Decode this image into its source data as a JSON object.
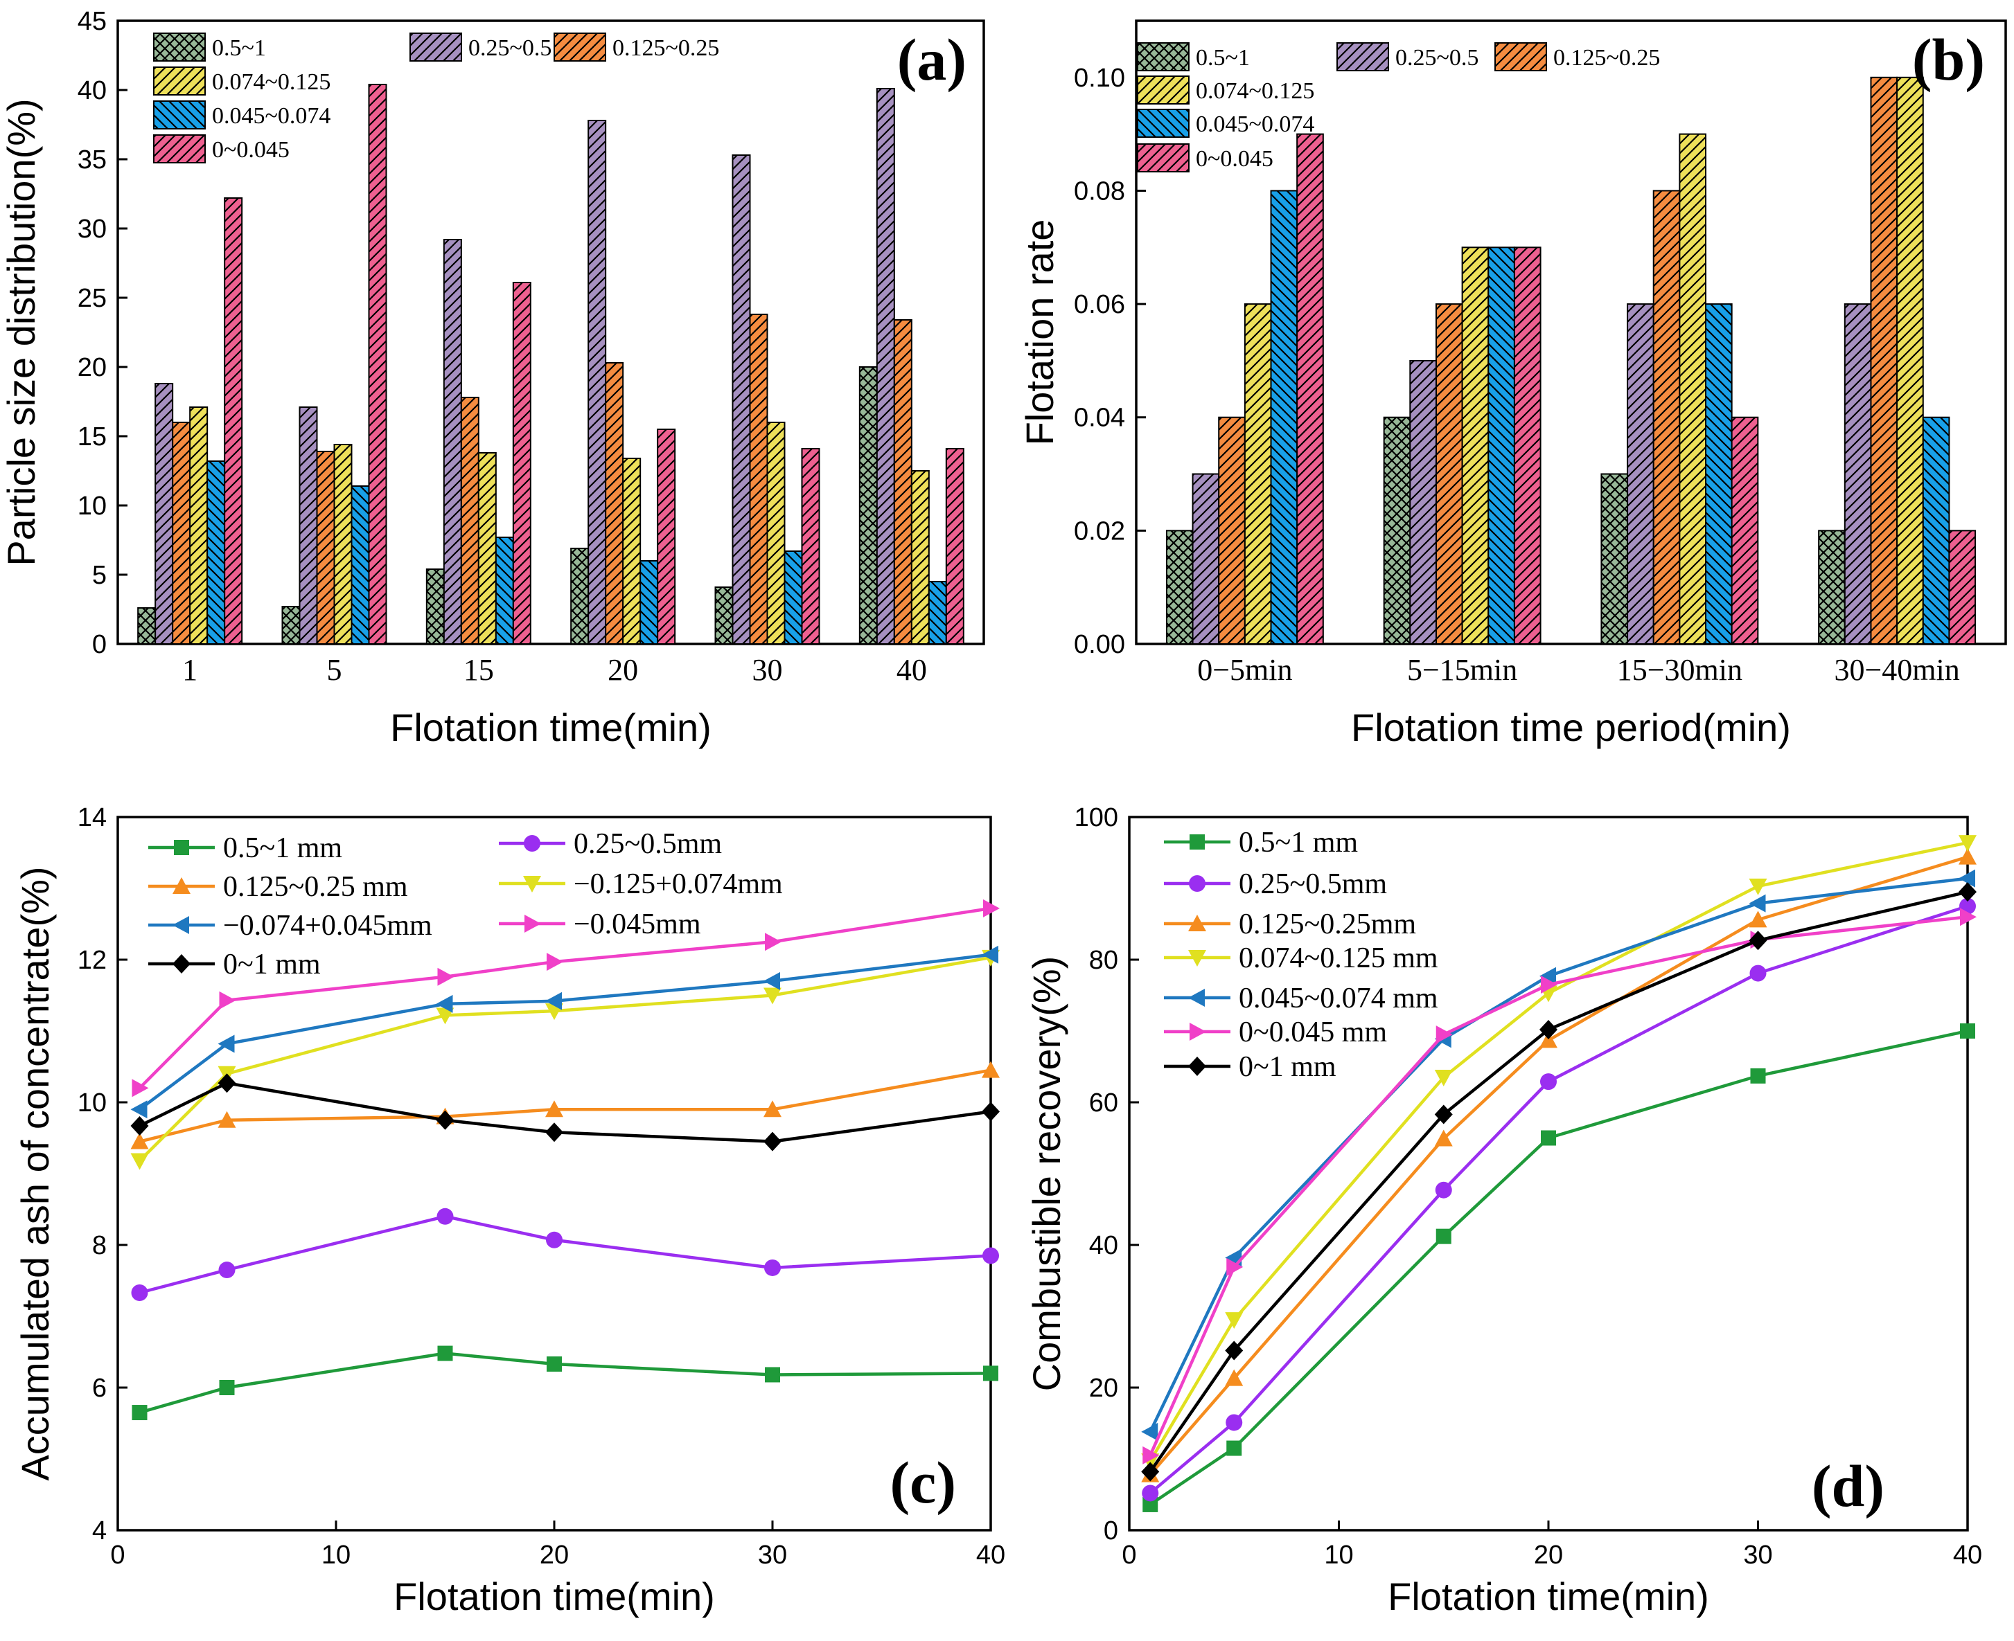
{
  "figure": {
    "bar_series": [
      {
        "name": "0.5~1",
        "color": "#98B898",
        "pattern": "cross"
      },
      {
        "name": "0.25~0.5",
        "color": "#A690C0",
        "pattern": "diagR"
      },
      {
        "name": "0.125~0.25",
        "color": "#F58C40",
        "pattern": "diagR"
      },
      {
        "name": "0.074~0.125",
        "color": "#EEE05A",
        "pattern": "diagR"
      },
      {
        "name": "0.045~0.074",
        "color": "#18A0E8",
        "pattern": "diagL"
      },
      {
        "name": "0~0.045",
        "color": "#EE6090",
        "pattern": "diagR"
      }
    ],
    "line_colors": [
      "#1F9A3A",
      "#9A2EF0",
      "#F58C1E",
      "#E0E020",
      "#1F78C0",
      "#F040C8",
      "#000000"
    ]
  },
  "chart_data": [
    {
      "panel": "(a)",
      "type": "bar",
      "title": "",
      "xlabel": "Flotation time(min)",
      "ylabel": "Particle size distribution(%)",
      "ylim": [
        0,
        45
      ],
      "yticks": [
        "0",
        "5",
        "10",
        "15",
        "20",
        "25",
        "30",
        "35",
        "40",
        "45"
      ],
      "categories": [
        "1",
        "5",
        "15",
        "20",
        "30",
        "40"
      ],
      "series": [
        {
          "name": "0.5~1",
          "values": [
            2.6,
            2.7,
            5.4,
            6.9,
            4.1,
            20.0
          ]
        },
        {
          "name": "0.25~0.5",
          "values": [
            18.8,
            17.1,
            29.2,
            37.8,
            35.3,
            40.1
          ]
        },
        {
          "name": "0.125~0.25",
          "values": [
            16.0,
            13.9,
            17.8,
            20.3,
            23.8,
            23.4
          ]
        },
        {
          "name": "0.074~0.125",
          "values": [
            17.1,
            14.4,
            13.8,
            13.4,
            16.0,
            12.5
          ]
        },
        {
          "name": "0.045~0.074",
          "values": [
            13.2,
            11.4,
            7.7,
            6.0,
            6.7,
            4.5
          ]
        },
        {
          "name": "0~0.045",
          "values": [
            32.2,
            40.4,
            26.1,
            15.5,
            14.1,
            14.1
          ]
        }
      ],
      "legend": "top-left"
    },
    {
      "panel": "(b)",
      "type": "bar",
      "title": "",
      "xlabel": "Flotation time period(min)",
      "ylabel": "Flotation rate",
      "ylim": [
        0,
        0.11
      ],
      "yticks": [
        "0.00",
        "0.02",
        "0.04",
        "0.06",
        "0.08",
        "0.10"
      ],
      "categories": [
        "0−5min",
        "5−15min",
        "15−30min",
        "30−40min"
      ],
      "series": [
        {
          "name": "0.5~1",
          "values": [
            0.02,
            0.04,
            0.03,
            0.02
          ]
        },
        {
          "name": "0.25~0.5",
          "values": [
            0.03,
            0.05,
            0.06,
            0.06
          ]
        },
        {
          "name": "0.125~0.25",
          "values": [
            0.04,
            0.06,
            0.08,
            0.1
          ]
        },
        {
          "name": "0.074~0.125",
          "values": [
            0.06,
            0.07,
            0.09,
            0.1
          ]
        },
        {
          "name": "0.045~0.074",
          "values": [
            0.08,
            0.07,
            0.06,
            0.04
          ]
        },
        {
          "name": "0~0.045",
          "values": [
            0.09,
            0.07,
            0.04,
            0.02
          ]
        }
      ],
      "legend": "top-left"
    },
    {
      "panel": "(c)",
      "type": "line",
      "title": "",
      "xlabel": "Flotation time(min)",
      "ylabel": "Accumulated ash of concentrate(%)",
      "xlim": [
        0,
        40
      ],
      "ylim": [
        4,
        14
      ],
      "xticks": [
        "0",
        "10",
        "20",
        "30",
        "40"
      ],
      "yticks": [
        "4",
        "6",
        "8",
        "10",
        "12",
        "14"
      ],
      "x": [
        1,
        5,
        15,
        20,
        30,
        40
      ],
      "series": [
        {
          "name": "0.5~1 mm",
          "marker": "square",
          "values": [
            5.65,
            6.0,
            6.48,
            6.33,
            6.18,
            6.2
          ]
        },
        {
          "name": "0.25~0.5mm",
          "marker": "circle",
          "values": [
            7.33,
            7.65,
            8.4,
            8.07,
            7.68,
            7.85
          ]
        },
        {
          "name": "0.125~0.25 mm",
          "marker": "triangle-up",
          "values": [
            9.45,
            9.75,
            9.8,
            9.9,
            9.9,
            10.45
          ]
        },
        {
          "name": "−0.125+0.074mm",
          "marker": "triangle-down",
          "values": [
            9.18,
            10.4,
            11.22,
            11.28,
            11.5,
            12.03
          ]
        },
        {
          "name": "−0.074+0.045mm",
          "marker": "triangle-left",
          "values": [
            9.9,
            10.82,
            11.38,
            11.42,
            11.7,
            12.07
          ]
        },
        {
          "name": "−0.045mm",
          "marker": "triangle-right",
          "values": [
            10.2,
            11.43,
            11.76,
            11.97,
            12.25,
            12.72
          ]
        },
        {
          "name": "0~1 mm",
          "marker": "diamond",
          "values": [
            9.67,
            10.27,
            9.75,
            9.58,
            9.45,
            9.87
          ]
        }
      ],
      "legend": "top-left"
    },
    {
      "panel": "(d)",
      "type": "line",
      "title": "",
      "xlabel": "Flotation time(min)",
      "ylabel": "Combustible recovery(%)",
      "xlim": [
        0,
        40
      ],
      "ylim": [
        0,
        100
      ],
      "xticks": [
        "0",
        "10",
        "20",
        "30",
        "40"
      ],
      "yticks": [
        "0",
        "20",
        "40",
        "60",
        "80",
        "100"
      ],
      "x": [
        1,
        5,
        15,
        20,
        30,
        40
      ],
      "series": [
        {
          "name": "0.5~1 mm",
          "marker": "square",
          "values": [
            3.6,
            11.5,
            41.2,
            55.0,
            63.7,
            70.0
          ]
        },
        {
          "name": "0.25~0.5mm",
          "marker": "circle",
          "values": [
            5.2,
            15.1,
            47.7,
            62.9,
            78.1,
            87.5
          ]
        },
        {
          "name": "0.125~0.25mm",
          "marker": "triangle-up",
          "values": [
            7.8,
            21.3,
            54.9,
            68.7,
            85.6,
            94.4
          ]
        },
        {
          "name": "0.074~0.125 mm",
          "marker": "triangle-down",
          "values": [
            9.7,
            29.5,
            63.5,
            75.3,
            90.3,
            96.4
          ]
        },
        {
          "name": "0.045~0.074 mm",
          "marker": "triangle-left",
          "values": [
            13.8,
            38.2,
            68.9,
            77.7,
            87.9,
            91.4
          ]
        },
        {
          "name": "0~0.045 mm",
          "marker": "triangle-right",
          "values": [
            10.5,
            36.9,
            69.5,
            76.5,
            82.8,
            86.0
          ]
        },
        {
          "name": "0~1 mm",
          "marker": "diamond",
          "values": [
            8.2,
            25.2,
            58.3,
            70.2,
            82.7,
            89.5
          ]
        }
      ],
      "legend": "top-left"
    }
  ]
}
